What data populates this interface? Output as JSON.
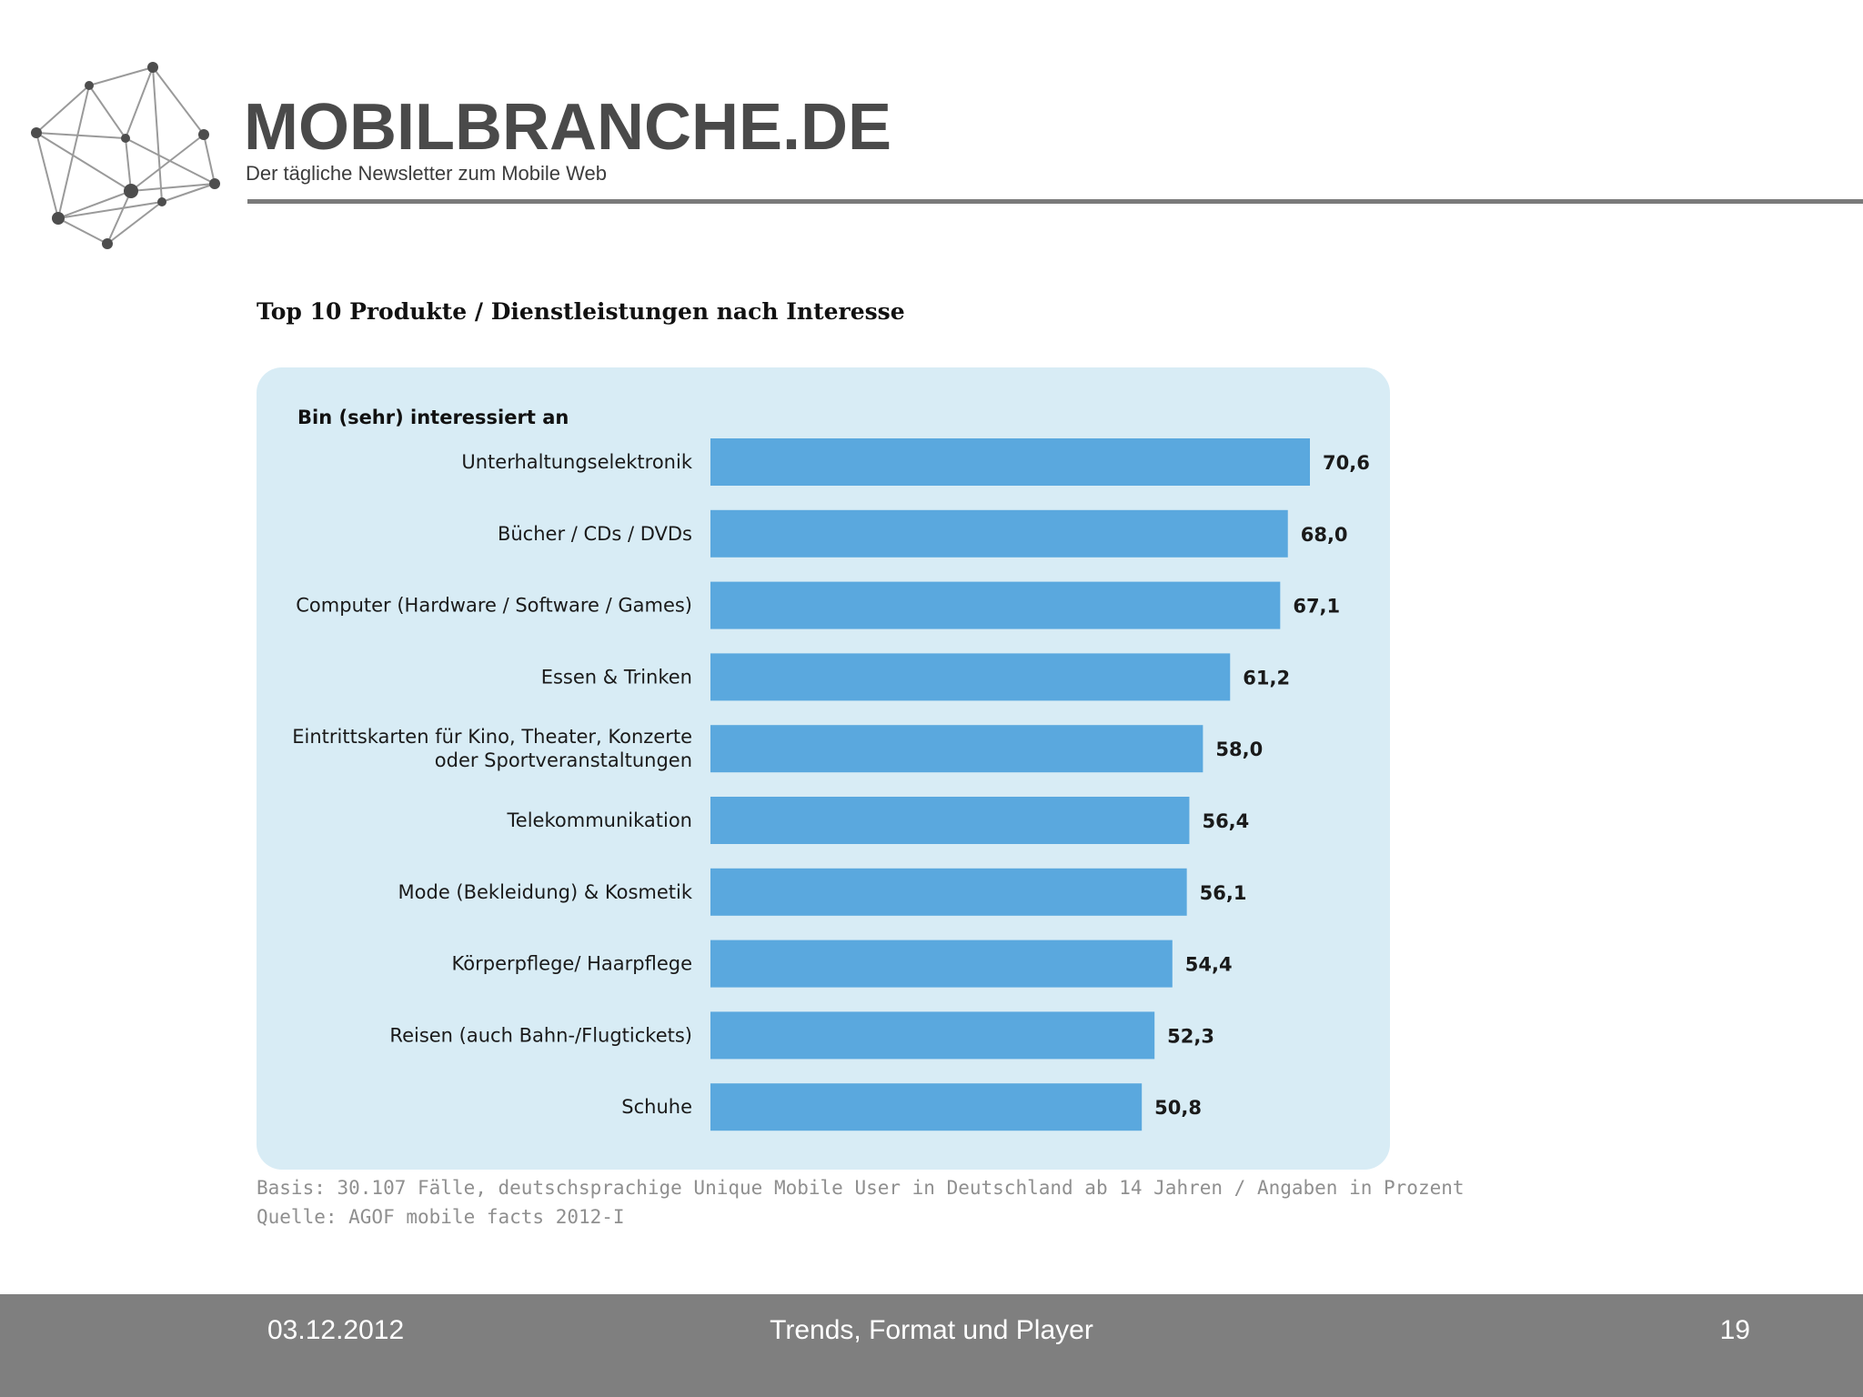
{
  "header": {
    "brand_name": "MOBILBRANCHE.DE",
    "tagline": "Der tägliche Newsletter zum Mobile Web",
    "logo_icon": "network-graph-icon"
  },
  "chart_data": {
    "type": "bar",
    "orientation": "horizontal",
    "title": "Top 10 Produkte / Dienstleistungen nach Interesse",
    "subtitle": "Bin (sehr) interessiert an",
    "categories": [
      "Unterhaltungselektronik",
      "Bücher / CDs / DVDs",
      "Computer (Hardware / Software / Games)",
      "Essen & Trinken",
      "Eintrittskarten für Kino, Theater, Konzerte\noder Sportveranstaltungen",
      "Telekommunikation",
      "Mode (Bekleidung) & Kosmetik",
      "Körperpflege/ Haarpflege",
      "Reisen (auch Bahn-/Flugtickets)",
      "Schuhe"
    ],
    "values": [
      70.6,
      68.0,
      67.1,
      61.2,
      58.0,
      56.4,
      56.1,
      54.4,
      52.3,
      50.8
    ],
    "value_labels": [
      "70,6",
      "68,0",
      "67,1",
      "61,2",
      "58,0",
      "56,4",
      "56,1",
      "54,4",
      "52,3",
      "50,8"
    ],
    "xlim": [
      0,
      70.6
    ],
    "grid": false,
    "legend": "none",
    "bar_color": "#5aa8de",
    "panel_color": "#d8ecf5"
  },
  "notes": {
    "basis": "Basis: 30.107 Fälle, deutschsprachige Unique Mobile User in Deutschland ab 14 Jahren / Angaben in Prozent",
    "source": "Quelle: AGOF mobile facts 2012-I"
  },
  "footer": {
    "date": "03.12.2012",
    "title": "Trends, Format und Player",
    "page_number": "19"
  }
}
